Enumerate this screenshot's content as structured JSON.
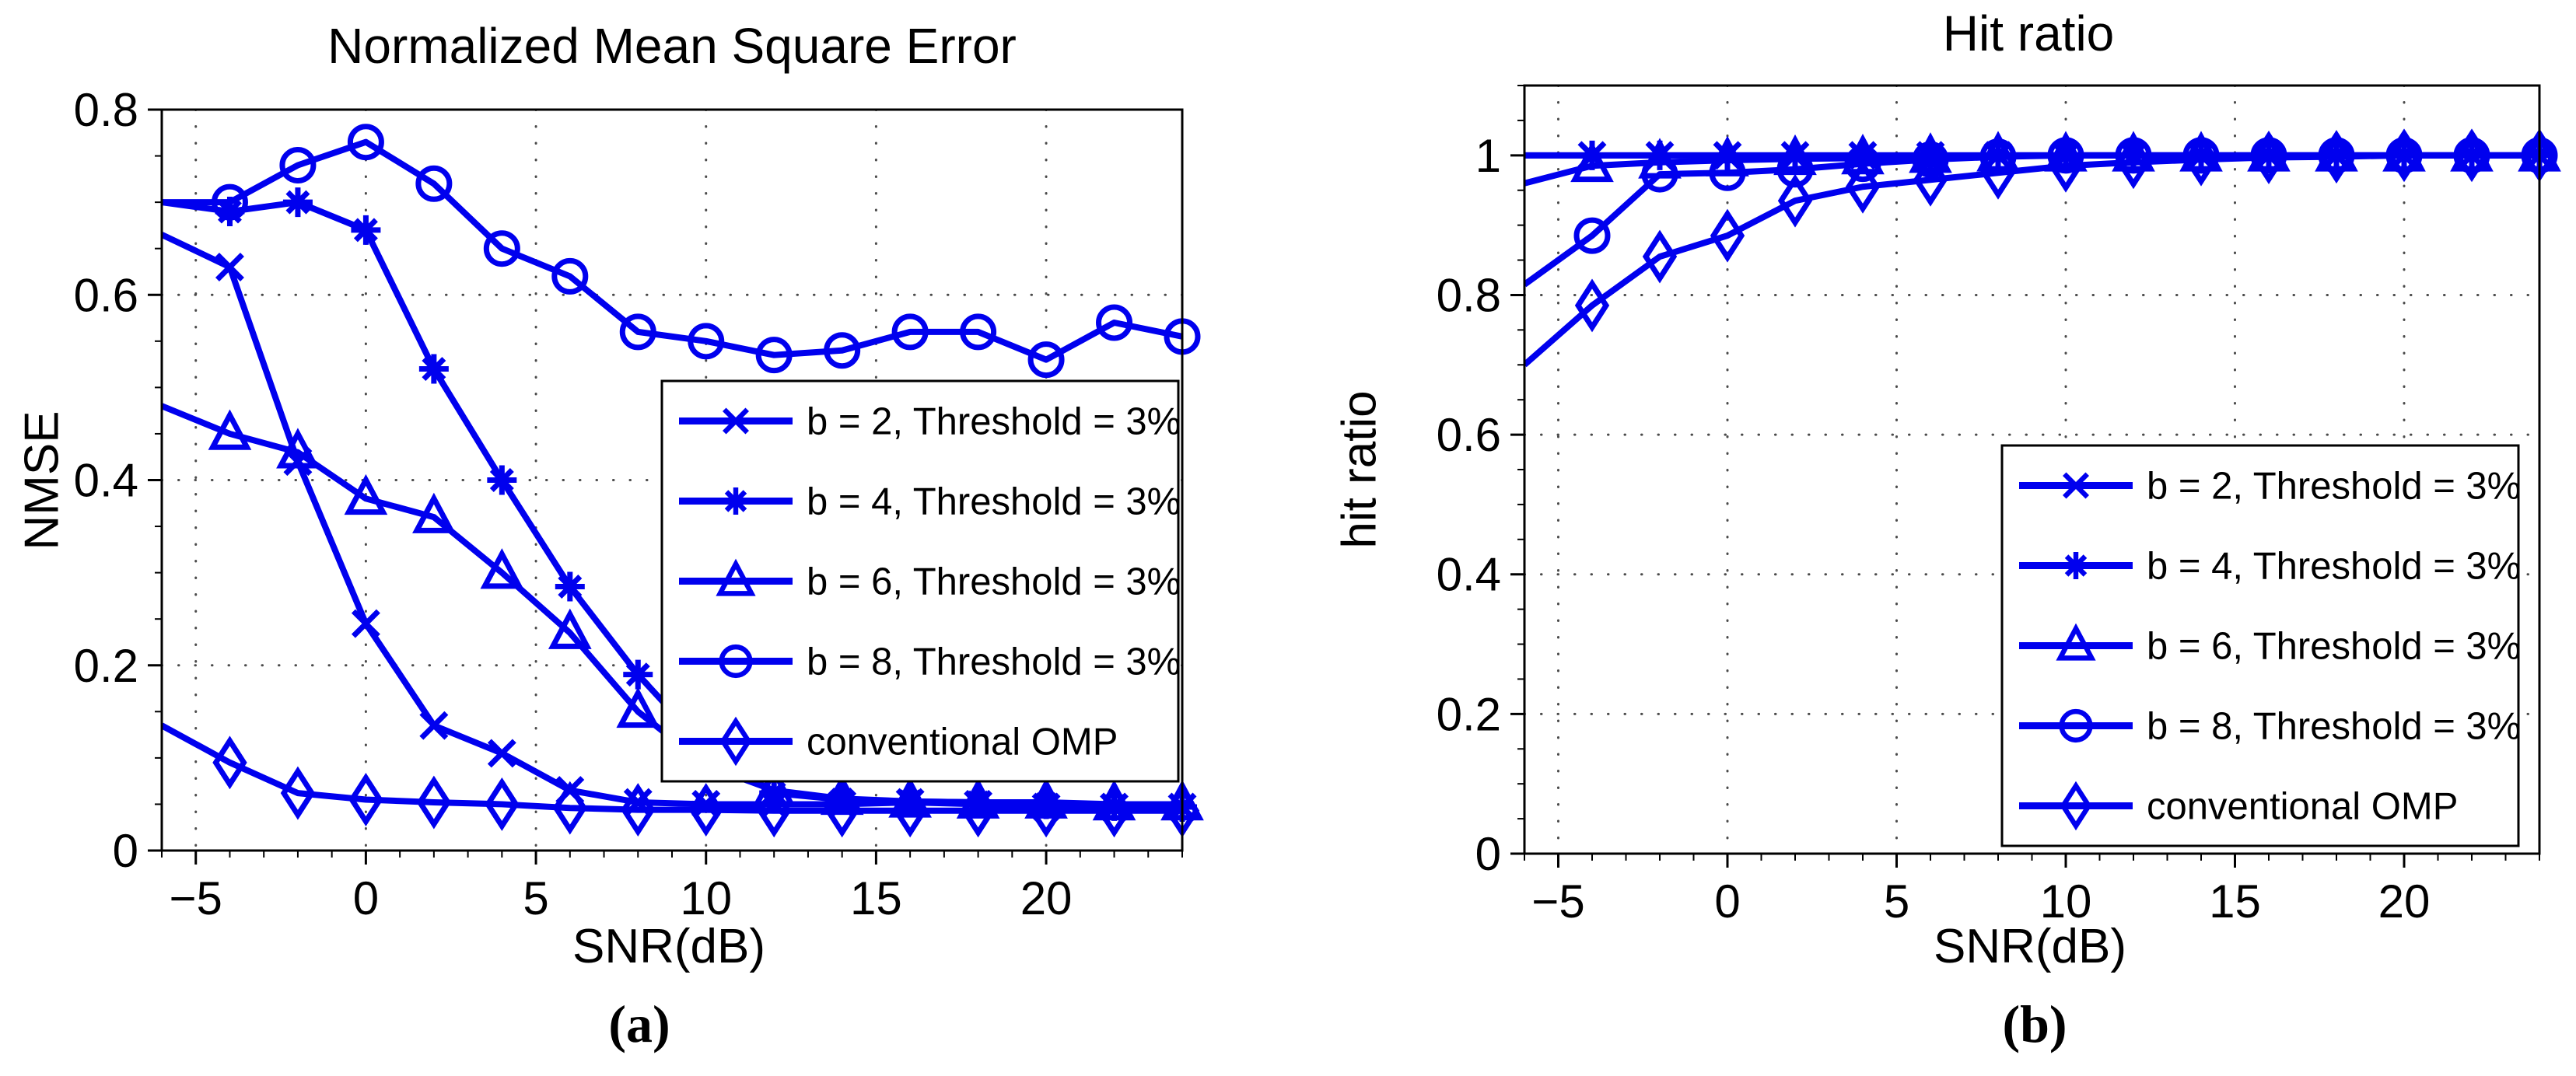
{
  "colors": {
    "line_blue": "#0000ee",
    "text_black": "#000000",
    "grid_dot": "#4a4a4a",
    "axis_black": "#000000",
    "background": "#ffffff",
    "legend_background": "#ffffff",
    "legend_border": "#000000"
  },
  "captions": {
    "a": "(a)",
    "b": "(b)"
  },
  "chart_data": [
    {
      "type": "line",
      "panel": "a",
      "title": "Normalized Mean Square Error",
      "xlabel": "SNR(dB)",
      "ylabel": "NMSE",
      "xlim": [
        -6,
        24
      ],
      "ylim": [
        0,
        0.8
      ],
      "xtick_values": [
        -5,
        0,
        5,
        10,
        15,
        20
      ],
      "xtick_labels": [
        "−5",
        "0",
        "5",
        "10",
        "15",
        "20"
      ],
      "ytick_values": [
        0,
        0.2,
        0.4,
        0.6,
        0.8
      ],
      "ytick_labels": [
        "0",
        "0.2",
        "0.4",
        "0.6",
        "0.8"
      ],
      "grid": true,
      "legend_position": "inside-middle-right",
      "x": [
        -6,
        -4,
        -2,
        0,
        2,
        4,
        6,
        8,
        10,
        12,
        14,
        16,
        18,
        20,
        22,
        24
      ],
      "series": [
        {
          "name": "b = 2, Threshold = 3%",
          "marker": "x",
          "values": [
            0.665,
            0.63,
            0.42,
            0.245,
            0.135,
            0.105,
            0.065,
            0.052,
            0.05,
            0.05,
            0.05,
            0.052,
            0.05,
            0.047,
            0.047,
            0.047
          ]
        },
        {
          "name": "b = 4, Threshold = 3%",
          "marker": "asterisk",
          "values": [
            0.7,
            0.69,
            0.7,
            0.67,
            0.52,
            0.4,
            0.285,
            0.19,
            0.11,
            0.062,
            0.055,
            0.053,
            0.052,
            0.05,
            0.048,
            0.047
          ]
        },
        {
          "name": "b = 6, Threshold = 3%",
          "marker": "triangle",
          "values": [
            0.48,
            0.45,
            0.43,
            0.38,
            0.36,
            0.3,
            0.235,
            0.15,
            0.092,
            0.065,
            0.056,
            0.053,
            0.052,
            0.052,
            0.05,
            0.05
          ]
        },
        {
          "name": "b = 8, Threshold = 3%",
          "marker": "circle",
          "values": [
            0.7,
            0.7,
            0.74,
            0.765,
            0.72,
            0.65,
            0.62,
            0.56,
            0.55,
            0.535,
            0.54,
            0.56,
            0.56,
            0.53,
            0.57,
            0.555
          ]
        },
        {
          "name": "conventional OMP",
          "marker": "diamond",
          "values": [
            0.135,
            0.095,
            0.062,
            0.055,
            0.052,
            0.05,
            0.046,
            0.044,
            0.044,
            0.043,
            0.043,
            0.043,
            0.043,
            0.043,
            0.043,
            0.043
          ]
        }
      ]
    },
    {
      "type": "line",
      "panel": "b",
      "title": "Hit ratio",
      "xlabel": "SNR(dB)",
      "ylabel": "hit ratio",
      "xlim": [
        -6,
        24
      ],
      "ylim": [
        0,
        1.1
      ],
      "xtick_values": [
        -5,
        0,
        5,
        10,
        15,
        20
      ],
      "xtick_labels": [
        "−5",
        "0",
        "5",
        "10",
        "15",
        "20"
      ],
      "ytick_values": [
        0,
        0.2,
        0.4,
        0.6,
        0.8,
        1
      ],
      "ytick_labels": [
        "0",
        "0.2",
        "0.4",
        "0.6",
        "0.8",
        "1"
      ],
      "grid": true,
      "legend_position": "inside-bottom-right",
      "x": [
        -6,
        -4,
        -2,
        0,
        2,
        4,
        6,
        8,
        10,
        12,
        14,
        16,
        18,
        20,
        22,
        24
      ],
      "series": [
        {
          "name": "b = 2, Threshold = 3%",
          "marker": "x",
          "values": [
            1,
            1,
            1,
            1,
            1,
            1,
            1,
            1,
            1,
            1,
            1,
            1,
            1,
            1,
            1,
            1
          ]
        },
        {
          "name": "b = 4, Threshold = 3%",
          "marker": "asterisk",
          "values": [
            1,
            1,
            1,
            1,
            1,
            1,
            1,
            1,
            1,
            1,
            1,
            1,
            1,
            1,
            1,
            1
          ]
        },
        {
          "name": "b = 6, Threshold = 3%",
          "marker": "triangle",
          "values": [
            0.96,
            0.985,
            0.99,
            0.993,
            0.995,
            0.996,
            0.998,
            1,
            1,
            1,
            1,
            1,
            1,
            1,
            1,
            1
          ]
        },
        {
          "name": "b = 8, Threshold = 3%",
          "marker": "circle",
          "values": [
            0.815,
            0.885,
            0.973,
            0.975,
            0.98,
            0.988,
            0.994,
            0.998,
            1,
            1,
            1,
            1,
            1,
            1,
            1,
            1
          ]
        },
        {
          "name": "conventional OMP",
          "marker": "diamond",
          "values": [
            0.7,
            0.785,
            0.855,
            0.885,
            0.935,
            0.955,
            0.965,
            0.975,
            0.985,
            0.99,
            0.994,
            0.997,
            0.998,
            1,
            1,
            1
          ]
        }
      ]
    }
  ]
}
